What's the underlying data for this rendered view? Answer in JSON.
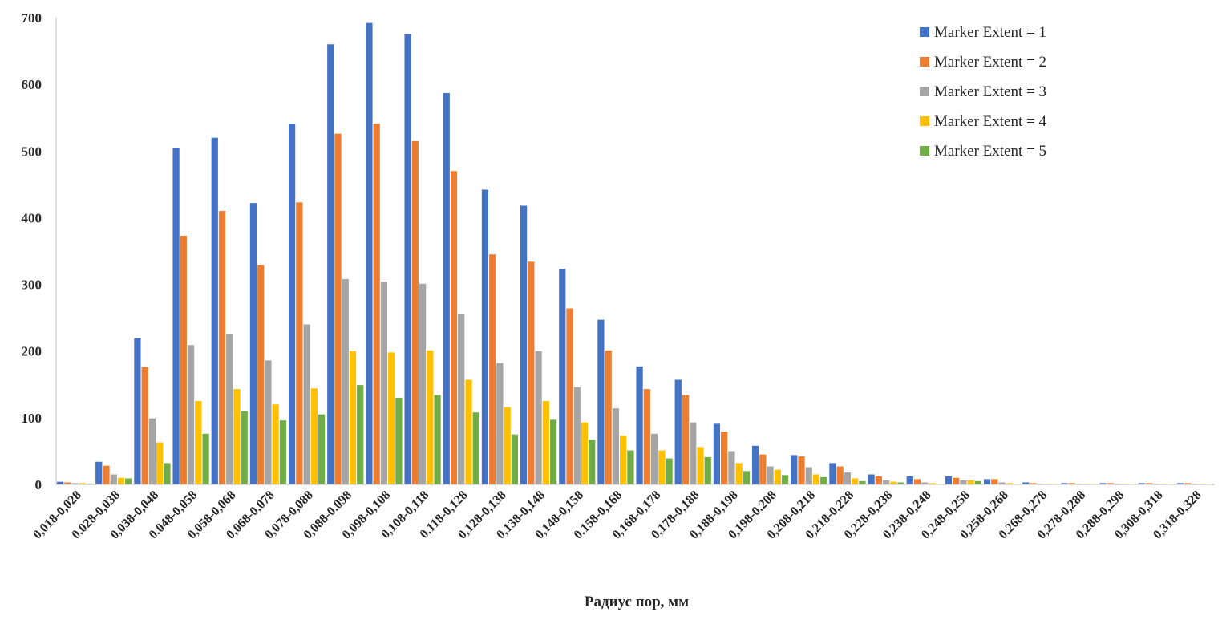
{
  "chart_data": {
    "type": "bar",
    "title": "",
    "xlabel": "Радиус пор, мм",
    "ylabel": "",
    "ylim": [
      0,
      700
    ],
    "yticks": [
      0,
      100,
      200,
      300,
      400,
      500,
      600,
      700
    ],
    "grid": false,
    "legend_position": "top-right",
    "categories": [
      "0,018-0,028",
      "0,028-0,038",
      "0,038-0,048",
      "0,048-0,058",
      "0,058-0,068",
      "0,068-0,078",
      "0,078-0,088",
      "0,088-0,098",
      "0,098-0,108",
      "0,108-0,118",
      "0,118-0,128",
      "0,128-0,138",
      "0,138-0,148",
      "0,148-0,158",
      "0,158-0,168",
      "0,168-0,178",
      "0,178-0,188",
      "0,188-0,198",
      "0,198-0,208",
      "0,208-0,218",
      "0,218-0,228",
      "0,228-0,238",
      "0,238-0,248",
      "0,248-0,258",
      "0,258-0,268",
      "0,268-0,278",
      "0,278-0,288",
      "0,288-0,298",
      "0,308-0,318",
      "0,318-0,328"
    ],
    "series": [
      {
        "name": "Marker Extent = 1",
        "color": "#4472C4",
        "values": [
          4,
          34,
          219,
          505,
          520,
          422,
          541,
          660,
          692,
          675,
          587,
          442,
          418,
          323,
          247,
          177,
          157,
          91,
          58,
          44,
          32,
          15,
          12,
          12,
          8,
          3,
          2,
          2,
          2,
          2
        ]
      },
      {
        "name": "Marker Extent = 2",
        "color": "#ED7D31",
        "values": [
          3,
          28,
          176,
          373,
          410,
          329,
          423,
          526,
          541,
          515,
          470,
          345,
          334,
          264,
          201,
          143,
          134,
          79,
          45,
          42,
          27,
          12,
          8,
          10,
          8,
          2,
          2,
          2,
          2,
          2
        ]
      },
      {
        "name": "Marker Extent = 3",
        "color": "#A5A5A5",
        "values": [
          2,
          15,
          99,
          209,
          226,
          186,
          240,
          308,
          304,
          301,
          255,
          182,
          200,
          146,
          114,
          76,
          93,
          50,
          27,
          26,
          18,
          6,
          3,
          6,
          3,
          1,
          1,
          1,
          1,
          1
        ]
      },
      {
        "name": "Marker Extent = 4",
        "color": "#FFC000",
        "values": [
          2,
          10,
          63,
          125,
          143,
          120,
          144,
          200,
          198,
          201,
          157,
          116,
          125,
          93,
          73,
          51,
          56,
          32,
          22,
          15,
          9,
          4,
          2,
          6,
          2,
          1,
          1,
          1,
          1,
          1
        ]
      },
      {
        "name": "Marker Extent = 5",
        "color": "#70AD47",
        "values": [
          1,
          9,
          32,
          76,
          110,
          96,
          105,
          149,
          130,
          134,
          108,
          75,
          97,
          67,
          51,
          39,
          41,
          20,
          14,
          11,
          5,
          3,
          1,
          5,
          1,
          1,
          1,
          1,
          1,
          1
        ]
      }
    ]
  }
}
